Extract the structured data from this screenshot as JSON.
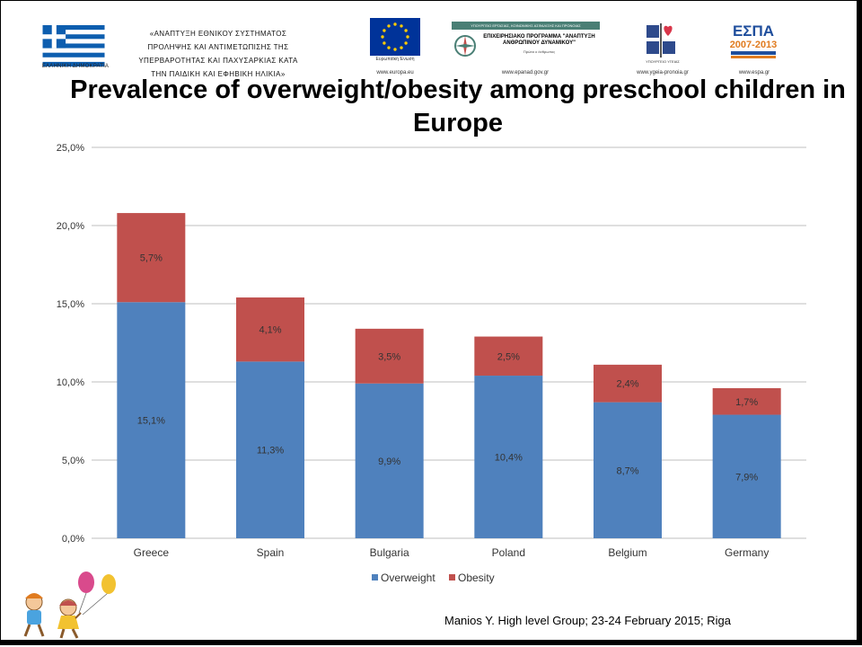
{
  "header": {
    "flag_caption": "ΕΛΛΗΝΙΚΗ ΔΗΜΟΚΡΑΤΙΑ",
    "program_lines": [
      "«ΑΝΑΠΤΥΞΗ ΕΘΝΙΚΟΥ ΣΥΣΤΗΜΑΤΟΣ",
      "ΠΡΟΛΗΨΗΣ ΚΑΙ ΑΝΤΙΜΕΤΩΠΙΣΗΣ ΤΗΣ",
      "ΥΠΕΡΒΑΡΟΤΗΤΑΣ ΚΑΙ ΠΑΧΥΣΑΡΚΙΑΣ ΚΑΤΑ",
      "ΤΗΝ ΠΑΙΔΙΚΗ ΚΑΙ ΕΦΗΒΙΚΗ ΗΛΙΚΙΑ»"
    ],
    "eu_caption": "Ευρωπαϊκή Ένωση",
    "eu_url": "www.europa.eu",
    "op_bar": "ΥΠΟΥΡΓΕΙΟ ΕΡΓΑΣΙΑΣ, ΚΟΙΝΩΝΙΚΗΣ ΑΣΦΑΛΙΣΗΣ ΚΑΙ ΠΡΟΝΟΙΑΣ",
    "op_title": "ΕΠΙΧΕΙΡΗΣΙΑΚΟ ΠΡΟΓΡΑΜΜΑ \"ΑΝΑΠΤΥΞΗ ΑΝΘΡΩΠΙΝΟΥ ΔΥΝΑΜΙΚΟΥ\"",
    "op_sub": "Πρώτα ο άνθρωπος",
    "op_url": "www.epanad.gov.gr",
    "health_caption": "ΥΠΟΥΡΓΕΙΟ ΥΓΕΙΑΣ",
    "health_url": "www.ygeia-pronoia.gr",
    "espa_title": "ΕΣΠΑ",
    "espa_years": "2007-2013",
    "espa_url": "www.espa.gr"
  },
  "colors": {
    "overweight": "#4f81bd",
    "obesity": "#c0504d",
    "grid": "#bfbfbf",
    "eu_blue": "#003399",
    "eu_star": "#ffcc00"
  },
  "chart_data": {
    "type": "bar",
    "stacked": true,
    "title": "Prevalence of overweight/obesity among preschool children in Europe",
    "categories": [
      "Greece",
      "Spain",
      "Bulgaria",
      "Poland",
      "Belgium",
      "Germany"
    ],
    "series": [
      {
        "name": "Overweight",
        "values": [
          15.1,
          11.3,
          9.9,
          10.4,
          8.7,
          7.9
        ],
        "labels": [
          "15,1%",
          "11,3%",
          "9,9%",
          "10,4%",
          "8,7%",
          "7,9%"
        ]
      },
      {
        "name": "Obesity",
        "values": [
          5.7,
          4.1,
          3.5,
          2.5,
          2.4,
          1.7
        ],
        "labels": [
          "5,7%",
          "4,1%",
          "3,5%",
          "2,5%",
          "2,4%",
          "1,7%"
        ]
      }
    ],
    "ylim": [
      0,
      25
    ],
    "yticks": [
      0,
      5,
      10,
      15,
      20,
      25
    ],
    "ytick_labels": [
      "0,0%",
      "5,0%",
      "10,0%",
      "15,0%",
      "20,0%",
      "25,0%"
    ],
    "grid": true,
    "legend": "bottom"
  },
  "footer": {
    "citation": "Manios Y. High level Group; 23-24 February 2015; Riga"
  }
}
